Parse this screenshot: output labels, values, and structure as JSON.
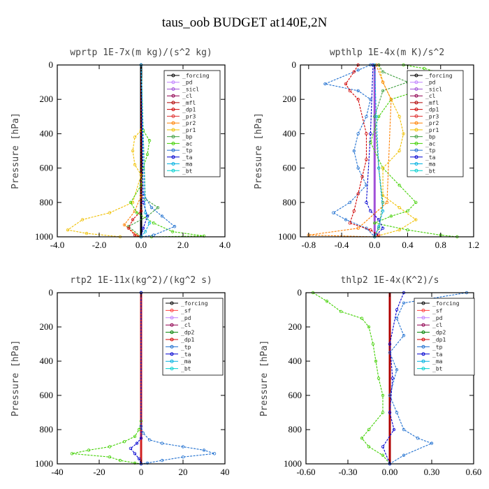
{
  "figure": {
    "title": "taus_oob  BUDGET at140E,2N"
  },
  "colors": {
    "forcing": "#000000",
    "sicl": "#a050d8",
    "cl": "#900050",
    "mfl": "#b00000",
    "dp1": "#d00000",
    "pr3": "#e03030",
    "pr2": "#ff8000",
    "pr1": "#f0c000",
    "bp": "#40a040",
    "ac": "#40d000",
    "tp": "#2070d0",
    "ta": "#0000d0",
    "ma": "#00b0e0",
    "bt": "#00d0d0",
    "pd": "#c080ff",
    "sf": "#ff4040",
    "dp2": "#008000",
    "zero_line_rt": "#d02020",
    "zero_line_th": "#b00000"
  },
  "chart_data": [
    {
      "type": "line",
      "title": "wprtp  1E-7x(m kg)/(s^2 kg)",
      "ylabel": "Pressure [hPa]",
      "xlim": [
        -4,
        4
      ],
      "ylim": [
        1000,
        0
      ],
      "xticks": [
        -4,
        -2,
        0,
        2,
        4
      ],
      "xticklabels": [
        "-4.0",
        "-2.0",
        "0.0",
        "2.0",
        "4.0"
      ],
      "yticks": [
        0,
        200,
        400,
        600,
        800,
        1000
      ],
      "yticklabels": [
        "0",
        "200",
        "400",
        "600",
        "800",
        "1000"
      ],
      "legend": [
        "_forcing",
        "_pd",
        "_sicl",
        "_cl",
        "_mfl",
        "_dp1",
        "_pr3",
        "_pr2",
        "_pr1",
        "_bp",
        "_ac",
        "_tp",
        "_ta",
        "_ma",
        "_bt"
      ],
      "legend_keys": [
        "forcing",
        "pd",
        "sicl",
        "cl",
        "mfl",
        "dp1",
        "pr3",
        "pr2",
        "pr1",
        "bp",
        "ac",
        "tp",
        "ta",
        "ma",
        "bt"
      ],
      "legend_position": "top-right",
      "series": [
        {
          "name": "_forcing",
          "key": "forcing",
          "x": [
            0,
            0
          ],
          "y": [
            0,
            1000
          ]
        },
        {
          "name": "_pr1",
          "key": "pr1",
          "x": [
            0,
            0,
            -0.3,
            -0.4,
            -0.3,
            0,
            -0.4,
            -1.5,
            -2.8,
            -3.5,
            -2.6,
            -1.0,
            0
          ],
          "y": [
            0,
            380,
            420,
            500,
            580,
            640,
            800,
            860,
            900,
            960,
            980,
            1000,
            1000
          ]
        },
        {
          "name": "_pr2",
          "key": "pr2",
          "x": [
            0,
            0,
            -0.3,
            -0.8,
            -0.2,
            0
          ],
          "y": [
            0,
            760,
            850,
            930,
            990,
            1000
          ]
        },
        {
          "name": "_ac",
          "key": "ac",
          "x": [
            0,
            0.1,
            0.4,
            0.3,
            0.1,
            0,
            -0.5,
            -0.2,
            0.6,
            1.5,
            3.0,
            0.5
          ],
          "y": [
            0,
            380,
            440,
            520,
            600,
            700,
            800,
            860,
            920,
            970,
            995,
            1000
          ]
        },
        {
          "name": "_bp",
          "key": "bp",
          "x": [
            0,
            0.2,
            0.8,
            0.3,
            -0.6,
            0
          ],
          "y": [
            0,
            780,
            830,
            880,
            940,
            1000
          ]
        },
        {
          "name": "_tp",
          "key": "tp",
          "x": [
            0,
            0.1,
            0.5,
            1.0,
            1.6,
            0.6,
            0
          ],
          "y": [
            0,
            750,
            830,
            880,
            940,
            990,
            1000
          ]
        },
        {
          "name": "_dp1",
          "key": "dp1",
          "x": [
            0,
            0,
            -0.4,
            -0.6,
            -0.3,
            0
          ],
          "y": [
            0,
            850,
            900,
            950,
            990,
            1000
          ]
        },
        {
          "name": "_ta",
          "key": "ta",
          "x": [
            0,
            0.1,
            0.3,
            0.1,
            0
          ],
          "y": [
            0,
            800,
            880,
            950,
            1000
          ]
        },
        {
          "name": "_ma",
          "key": "ma",
          "x": [
            0,
            0.2,
            0.4,
            0.2,
            0
          ],
          "y": [
            0,
            860,
            920,
            970,
            1000
          ]
        }
      ]
    },
    {
      "type": "line",
      "title": "wpthlp  1E-4x(m K)/s^2",
      "ylabel": "Pressure [hPa]",
      "xlim": [
        -0.9,
        1.2
      ],
      "ylim": [
        1000,
        0
      ],
      "xticks": [
        -0.8,
        -0.4,
        0,
        0.4,
        0.8,
        1.2
      ],
      "xticklabels": [
        "-0.8",
        "-0.4",
        "0.0",
        "0.4",
        "0.8",
        "1.2"
      ],
      "yticks": [
        0,
        200,
        400,
        600,
        800,
        1000
      ],
      "yticklabels": [
        "0",
        "200",
        "400",
        "600",
        "800",
        "1000"
      ],
      "legend": [
        "_forcing",
        "_pd",
        "_sicl",
        "_cl",
        "_mfl",
        "_dp1",
        "_pr3",
        "_pr2",
        "_pr1",
        "_bp",
        "_ac",
        "_tp",
        "_ta",
        "_ma",
        "_bt"
      ],
      "legend_keys": [
        "forcing",
        "pd",
        "sicl",
        "cl",
        "mfl",
        "dp1",
        "pr3",
        "pr2",
        "pr1",
        "bp",
        "ac",
        "tp",
        "ta",
        "ma",
        "bt"
      ],
      "legend_position": "top-right",
      "series": [
        {
          "name": "_forcing",
          "key": "sicl",
          "x": [
            0,
            0
          ],
          "y": [
            0,
            1000
          ]
        },
        {
          "name": "_ac",
          "key": "ac",
          "x": [
            0.35,
            0.6,
            0.9,
            1.05,
            0.6,
            0.2,
            0.05,
            -0.05,
            0.1,
            0.3,
            0.5,
            0.4,
            0.2,
            0,
            0.4,
            0.8,
            1.0
          ],
          "y": [
            0,
            20,
            60,
            110,
            140,
            200,
            300,
            450,
            600,
            700,
            800,
            850,
            880,
            920,
            960,
            990,
            1000
          ]
        },
        {
          "name": "_pr1",
          "key": "pr1",
          "x": [
            0.05,
            0.1,
            0.2,
            0.3,
            0.35,
            0.3,
            0.1,
            0.1,
            0.3,
            0.5,
            0.3,
            0
          ],
          "y": [
            0,
            100,
            200,
            300,
            400,
            500,
            600,
            760,
            830,
            900,
            960,
            1000
          ]
        },
        {
          "name": "_tp",
          "key": "tp",
          "x": [
            -0.05,
            -0.2,
            -0.6,
            -0.2,
            -0.05,
            -0.1,
            -0.2,
            -0.25,
            -0.2,
            -0.1,
            -0.3,
            -0.5,
            -0.35,
            -0.1,
            0
          ],
          "y": [
            0,
            30,
            110,
            150,
            200,
            300,
            400,
            500,
            600,
            700,
            800,
            860,
            900,
            950,
            1000
          ]
        },
        {
          "name": "_dp1",
          "key": "dp1",
          "x": [
            -0.2,
            -0.25,
            -0.35,
            -0.3,
            -0.2,
            -0.1,
            -0.1,
            -0.15,
            -0.2,
            -0.25,
            -0.3,
            -0.05,
            0.05,
            0
          ],
          "y": [
            0,
            40,
            110,
            150,
            200,
            400,
            550,
            650,
            750,
            850,
            920,
            960,
            990,
            1000
          ]
        },
        {
          "name": "_bp",
          "key": "bp",
          "x": [
            0.05,
            0.1,
            0.4,
            0.1,
            0,
            0.05,
            0.1,
            0.05,
            0
          ],
          "y": [
            0,
            40,
            100,
            150,
            300,
            600,
            800,
            950,
            1000
          ]
        },
        {
          "name": "_ta",
          "key": "ta",
          "x": [
            -0.02,
            -0.05,
            -0.1,
            -0.05,
            0.05,
            0.1,
            0
          ],
          "y": [
            0,
            400,
            800,
            850,
            900,
            950,
            1000
          ]
        },
        {
          "name": "_pr2",
          "key": "pr2",
          "x": [
            0.02,
            0.1,
            0.2,
            0.15,
            -0.2,
            -0.8,
            0
          ],
          "y": [
            0,
            100,
            200,
            800,
            950,
            990,
            1000
          ]
        },
        {
          "name": "_ma",
          "key": "ma",
          "x": [
            0,
            0.02,
            0.05,
            0.1,
            0.05,
            0
          ],
          "y": [
            0,
            300,
            600,
            850,
            940,
            1000
          ]
        }
      ]
    },
    {
      "type": "line",
      "title": "rtp2  1E-11x(kg^2)/(kg^2 s)",
      "ylabel": "Pressure [hPa]",
      "xlim": [
        -40,
        40
      ],
      "ylim": [
        1000,
        0
      ],
      "xticks": [
        -40,
        -20,
        0,
        20,
        40
      ],
      "xticklabels": [
        "-40",
        "-20",
        "0",
        "20",
        "40"
      ],
      "yticks": [
        0,
        200,
        400,
        600,
        800,
        1000
      ],
      "yticklabels": [
        "0",
        "200",
        "400",
        "600",
        "800",
        "1000"
      ],
      "legend": [
        "_forcing",
        "_sf",
        "_pd",
        "_cl",
        "_dp2",
        "_dp1",
        "_tp",
        "_ta",
        "_ma",
        "_bt"
      ],
      "legend_keys": [
        "forcing",
        "sf",
        "pd",
        "cl",
        "dp2",
        "dp1",
        "tp",
        "ta",
        "ma",
        "bt"
      ],
      "legend_position": "top-right",
      "series": [
        {
          "name": "_forcing",
          "key": "zero_line_rt",
          "x": [
            0,
            0
          ],
          "y": [
            0,
            1000
          ]
        },
        {
          "name": "_dp1",
          "key": "ac",
          "x": [
            0,
            0,
            -1,
            -3,
            -8,
            -15,
            -25,
            -33,
            -15,
            -10,
            -3,
            0
          ],
          "y": [
            0,
            750,
            800,
            840,
            870,
            900,
            920,
            940,
            960,
            980,
            995,
            1000
          ]
        },
        {
          "name": "_tp",
          "key": "tp",
          "x": [
            0,
            0,
            1,
            4,
            10,
            20,
            30,
            35,
            20,
            10,
            3,
            0
          ],
          "y": [
            0,
            780,
            820,
            860,
            880,
            900,
            920,
            940,
            960,
            980,
            995,
            1000
          ]
        },
        {
          "name": "_ta",
          "key": "ta",
          "x": [
            0,
            0,
            -2,
            -5,
            -3,
            -1,
            0
          ],
          "y": [
            0,
            850,
            880,
            910,
            940,
            970,
            1000
          ]
        }
      ]
    },
    {
      "type": "line",
      "title": "thlp2  1E-4x(K^2)/s",
      "ylabel": "Pressure [hPa]",
      "xlim": [
        -0.6,
        0.6
      ],
      "ylim": [
        1000,
        0
      ],
      "xticks": [
        -0.6,
        -0.3,
        0,
        0.3,
        0.6
      ],
      "xticklabels": [
        "-0.60",
        "-0.30",
        "0.00",
        "0.30",
        "0.60"
      ],
      "yticks": [
        0,
        200,
        400,
        600,
        800,
        1000
      ],
      "yticklabels": [
        "0",
        "200",
        "400",
        "600",
        "800",
        "1000"
      ],
      "legend": [
        "_forcing",
        "_sf",
        "_pd",
        "_cl",
        "_dp2",
        "_dp1",
        "_tp",
        "_ta",
        "_ma",
        "_bt"
      ],
      "legend_keys": [
        "forcing",
        "sf",
        "pd",
        "cl",
        "dp2",
        "dp1",
        "tp",
        "ta",
        "ma",
        "bt"
      ],
      "legend_position": "top-right",
      "series": [
        {
          "name": "_forcing",
          "key": "zero_line_th",
          "x": [
            0,
            0
          ],
          "y": [
            0,
            1000
          ]
        },
        {
          "name": "_dp1",
          "key": "ac",
          "x": [
            -0.55,
            -0.45,
            -0.35,
            -0.2,
            -0.15,
            -0.12,
            -0.1,
            -0.08,
            -0.05,
            -0.05,
            -0.15,
            -0.2,
            -0.15,
            -0.05,
            0
          ],
          "y": [
            0,
            50,
            110,
            150,
            200,
            300,
            400,
            500,
            600,
            700,
            800,
            850,
            900,
            950,
            1000
          ]
        },
        {
          "name": "_tp",
          "key": "tp",
          "x": [
            0.55,
            0.1,
            0.05,
            0.1,
            0.0,
            0.05,
            0.0,
            0.05,
            0.1,
            0.2,
            0.3,
            0.1,
            0
          ],
          "y": [
            0,
            60,
            150,
            250,
            350,
            450,
            600,
            700,
            800,
            850,
            880,
            950,
            1000
          ]
        },
        {
          "name": "_ta",
          "key": "ta",
          "x": [
            0.1,
            0.05,
            0.0,
            0.02,
            0.0,
            0.03,
            -0.05,
            0.0
          ],
          "y": [
            0,
            100,
            300,
            500,
            700,
            800,
            900,
            1000
          ]
        }
      ]
    }
  ]
}
